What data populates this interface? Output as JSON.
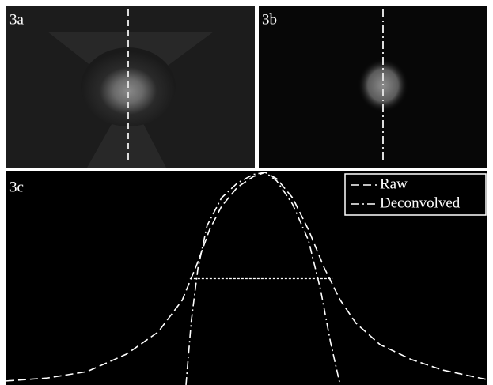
{
  "panels": {
    "a": {
      "label": "3a"
    },
    "b": {
      "label": "3b"
    }
  },
  "chart_data": {
    "type": "line",
    "panel_label": "3c",
    "xlim": [
      0,
      100
    ],
    "ylim": [
      0,
      1
    ],
    "series": [
      {
        "name": "Raw",
        "color": "#ffffff",
        "dash": "10 5",
        "x": [
          0,
          8.6,
          16.8,
          25.0,
          31.6,
          36.6,
          39.9,
          42.3,
          44.8,
          48.1,
          51.4,
          53.9,
          56.3,
          59.6,
          62.9,
          66.2,
          69.5,
          72.8,
          77.8,
          84.3,
          90.9,
          100
        ],
        "values": [
          0.019,
          0.033,
          0.063,
          0.145,
          0.249,
          0.398,
          0.58,
          0.73,
          0.84,
          0.93,
          0.98,
          1.0,
          0.97,
          0.88,
          0.73,
          0.55,
          0.4,
          0.29,
          0.19,
          0.12,
          0.07,
          0.026
        ]
      },
      {
        "name": "Deconvolved",
        "color": "#ffffff",
        "dash": "10 4 2 4",
        "x": [
          37.4,
          38.5,
          39.9,
          41.8,
          44.8,
          48.1,
          51.4,
          53.9,
          56.3,
          59.6,
          62.9,
          65.4,
          67.5,
          69.5
        ],
        "values": [
          0,
          0.3,
          0.55,
          0.75,
          0.88,
          0.95,
          0.99,
          1.0,
          0.96,
          0.85,
          0.68,
          0.45,
          0.2,
          0
        ]
      }
    ],
    "half_max": {
      "value": 0.5,
      "x_start": 38.2,
      "x_end": 67.9
    },
    "legend": "upper right"
  }
}
